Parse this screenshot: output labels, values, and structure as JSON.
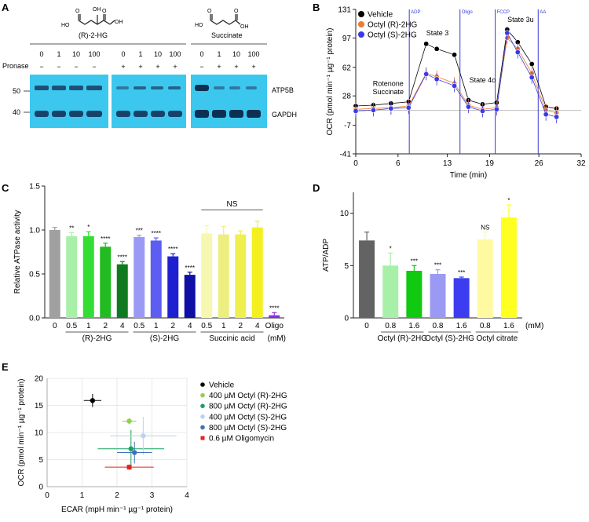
{
  "panel_letters": {
    "a": "A",
    "b": "B",
    "c": "C",
    "d": "D",
    "e": "E"
  },
  "panel_a": {
    "compound1": "(R)-2-HG",
    "compound2": "Succinate",
    "pronase_label": "Pronase",
    "doses": [
      "0",
      "1",
      "10",
      "100",
      "0",
      "1",
      "10",
      "100",
      "0",
      "1",
      "10",
      "100"
    ],
    "pronase_signs": [
      "−",
      "−",
      "−",
      "−",
      "+",
      "+",
      "+",
      "+",
      "−",
      "+",
      "+",
      "+"
    ],
    "blot_labels": [
      "ATP5B",
      "GAPDH"
    ],
    "mw_markers": [
      "50",
      "40"
    ],
    "blot_color": "#3cc8ee"
  },
  "chart_data": [
    {
      "panel": "B",
      "type": "scatter",
      "xlabel": "Time (min)",
      "ylabel": "OCR (pmol min⁻¹ µg⁻¹ protein)",
      "xticks": [
        "0",
        "6",
        "13",
        "19",
        "26",
        "32"
      ],
      "yticks": [
        "131",
        "97",
        "62",
        "28",
        "-7",
        "-41"
      ],
      "xlim": [
        0,
        32
      ],
      "ylim": [
        -41,
        131
      ],
      "baseline": 11,
      "injections": [
        {
          "label": "ADP",
          "x": 7.6
        },
        {
          "label": "Oligo",
          "x": 14.8
        },
        {
          "label": "FCCP",
          "x": 19.8
        },
        {
          "label": "AA",
          "x": 25.9
        }
      ],
      "annotations": [
        {
          "text": "Rotenone",
          "x": 4.6,
          "y": 40
        },
        {
          "text": "Succinate",
          "x": 4.6,
          "y": 30
        },
        {
          "text": "State 3",
          "x": 11.6,
          "y": 100
        },
        {
          "text": "State 4o",
          "x": 18.0,
          "y": 44
        },
        {
          "text": "State 3u",
          "x": 23.4,
          "y": 116
        }
      ],
      "series": [
        {
          "name": "Vehicle",
          "color": "#000000",
          "x": [
            0,
            2.5,
            5,
            7.5,
            10,
            11.5,
            14,
            16,
            18,
            20,
            21.5,
            23,
            25,
            27,
            28.5
          ],
          "y": [
            16,
            17,
            19,
            21,
            90,
            84,
            77,
            23,
            18,
            20,
            107,
            92,
            66,
            15,
            13
          ]
        },
        {
          "name": "Octyl (R)-2HG",
          "color": "#f07a2e",
          "x": [
            0,
            2.5,
            5,
            7.5,
            10,
            11.5,
            14,
            16,
            18,
            20,
            21.5,
            23,
            25,
            27,
            28.5
          ],
          "y": [
            12,
            13,
            14,
            16,
            55,
            51,
            43,
            17,
            12,
            14,
            97,
            84,
            55,
            11,
            8
          ]
        },
        {
          "name": "Octyl (S)-2HG",
          "color": "#3a3ae6",
          "x": [
            0,
            2.5,
            5,
            7.5,
            10,
            11.5,
            14,
            16,
            18,
            20,
            21.5,
            23,
            25,
            27,
            28.5
          ],
          "y": [
            10,
            11,
            13,
            14,
            54,
            48,
            40,
            15,
            10,
            12,
            103,
            80,
            50,
            6,
            3
          ]
        }
      ]
    },
    {
      "panel": "C",
      "type": "bar",
      "ylabel": "Relative ATPase activity",
      "yticks": [
        "0.0",
        "0.5",
        "1.0",
        "1.5"
      ],
      "ylim": [
        0,
        1.5
      ],
      "categories": [
        "0",
        "0.5",
        "1",
        "2",
        "4",
        "0.5",
        "1",
        "2",
        "4",
        "0.5",
        "1",
        "2",
        "4",
        "Oligo"
      ],
      "values": [
        1.0,
        0.93,
        0.93,
        0.81,
        0.61,
        0.92,
        0.88,
        0.7,
        0.49,
        0.96,
        0.95,
        0.95,
        1.03,
        0.03
      ],
      "errors": [
        0.03,
        0.04,
        0.05,
        0.04,
        0.03,
        0.02,
        0.03,
        0.03,
        0.03,
        0.09,
        0.09,
        0.04,
        0.07,
        0.03
      ],
      "colors": [
        "#a0a0a0",
        "#a8f0a8",
        "#33dd33",
        "#22bb22",
        "#0f7a1f",
        "#9a9af5",
        "#5d5df2",
        "#1f1fd2",
        "#0f0fa5",
        "#f6f7b0",
        "#ecee80",
        "#f0ef50",
        "#f4f020",
        "#8a2be2"
      ],
      "significance": [
        "",
        "**",
        "*",
        "****",
        "****",
        "***",
        "****",
        "****",
        "****",
        "",
        "",
        "",
        "",
        "****"
      ],
      "groups": [
        {
          "label": "(R)-2HG",
          "from": 1,
          "to": 4
        },
        {
          "label": "(S)-2HG",
          "from": 5,
          "to": 8
        },
        {
          "label": "Succinic acid",
          "from": 9,
          "to": 12
        }
      ],
      "unit": "(mM)",
      "ns_label": "NS"
    },
    {
      "panel": "D",
      "type": "bar",
      "ylabel": "ATP/ADP",
      "yticks": [
        "0",
        "5",
        "10"
      ],
      "ylim": [
        0,
        12
      ],
      "categories": [
        "0",
        "0.8",
        "1.6",
        "0.8",
        "1.6",
        "0.8",
        "1.6"
      ],
      "values": [
        7.4,
        5.0,
        4.5,
        4.2,
        3.8,
        7.5,
        9.6
      ],
      "errors": [
        0.8,
        1.2,
        0.5,
        0.4,
        0.1,
        0.7,
        1.2
      ],
      "colors": [
        "#636363",
        "#a8f0a8",
        "#12c912",
        "#9a9af5",
        "#3c3cf0",
        "#fffaa0",
        "#ffff22"
      ],
      "significance": [
        "",
        "*",
        "***",
        "***",
        "***",
        "NS",
        "*"
      ],
      "groups": [
        {
          "label": "Octyl (R)-2HG",
          "from": 1,
          "to": 2
        },
        {
          "label": "Octyl (S)-2HG",
          "from": 3,
          "to": 4
        },
        {
          "label": "Octyl citrate",
          "from": 5,
          "to": 6
        }
      ],
      "unit": "(mM)"
    },
    {
      "panel": "E",
      "type": "scatter",
      "xlabel": "ECAR (mpH min⁻¹ µg⁻¹ protein)",
      "ylabel": "OCR (pmol min⁻¹ µg⁻¹ protein)",
      "xticks": [
        "0",
        "1",
        "2",
        "3",
        "4"
      ],
      "yticks": [
        "0",
        "5",
        "10",
        "15",
        "20"
      ],
      "xlim": [
        0,
        4
      ],
      "ylim": [
        0,
        20
      ],
      "series": [
        {
          "name": "Vehicle",
          "color": "#000000",
          "marker": "circle",
          "x": 1.3,
          "y": 15.9,
          "xerr": 0.25,
          "yerr": 1.2
        },
        {
          "name": "400 µM Octyl (R)-2HG",
          "color": "#8fd14f",
          "marker": "circle",
          "x": 2.35,
          "y": 12.1,
          "xerr": 0.2,
          "yerr": 0.5
        },
        {
          "name": "800 µM Octyl (R)-2HG",
          "color": "#1aa060",
          "marker": "circle",
          "x": 2.4,
          "y": 7.0,
          "xerr": 0.95,
          "yerr": 3.5
        },
        {
          "name": "400 µM Octyl (S)-2HG",
          "color": "#b9d3ee",
          "marker": "circle",
          "x": 2.75,
          "y": 9.4,
          "xerr": 0.95,
          "yerr": 3.5
        },
        {
          "name": "800 µM Octyl (S)-2HG",
          "color": "#3f6fb8",
          "marker": "circle",
          "x": 2.5,
          "y": 6.3,
          "xerr": 0.5,
          "yerr": 2.0
        },
        {
          "name": "0.6 µM Oligomycin",
          "color": "#e52222",
          "marker": "square",
          "x": 2.35,
          "y": 3.6,
          "xerr": 0.7,
          "yerr": 0.5
        }
      ]
    }
  ]
}
